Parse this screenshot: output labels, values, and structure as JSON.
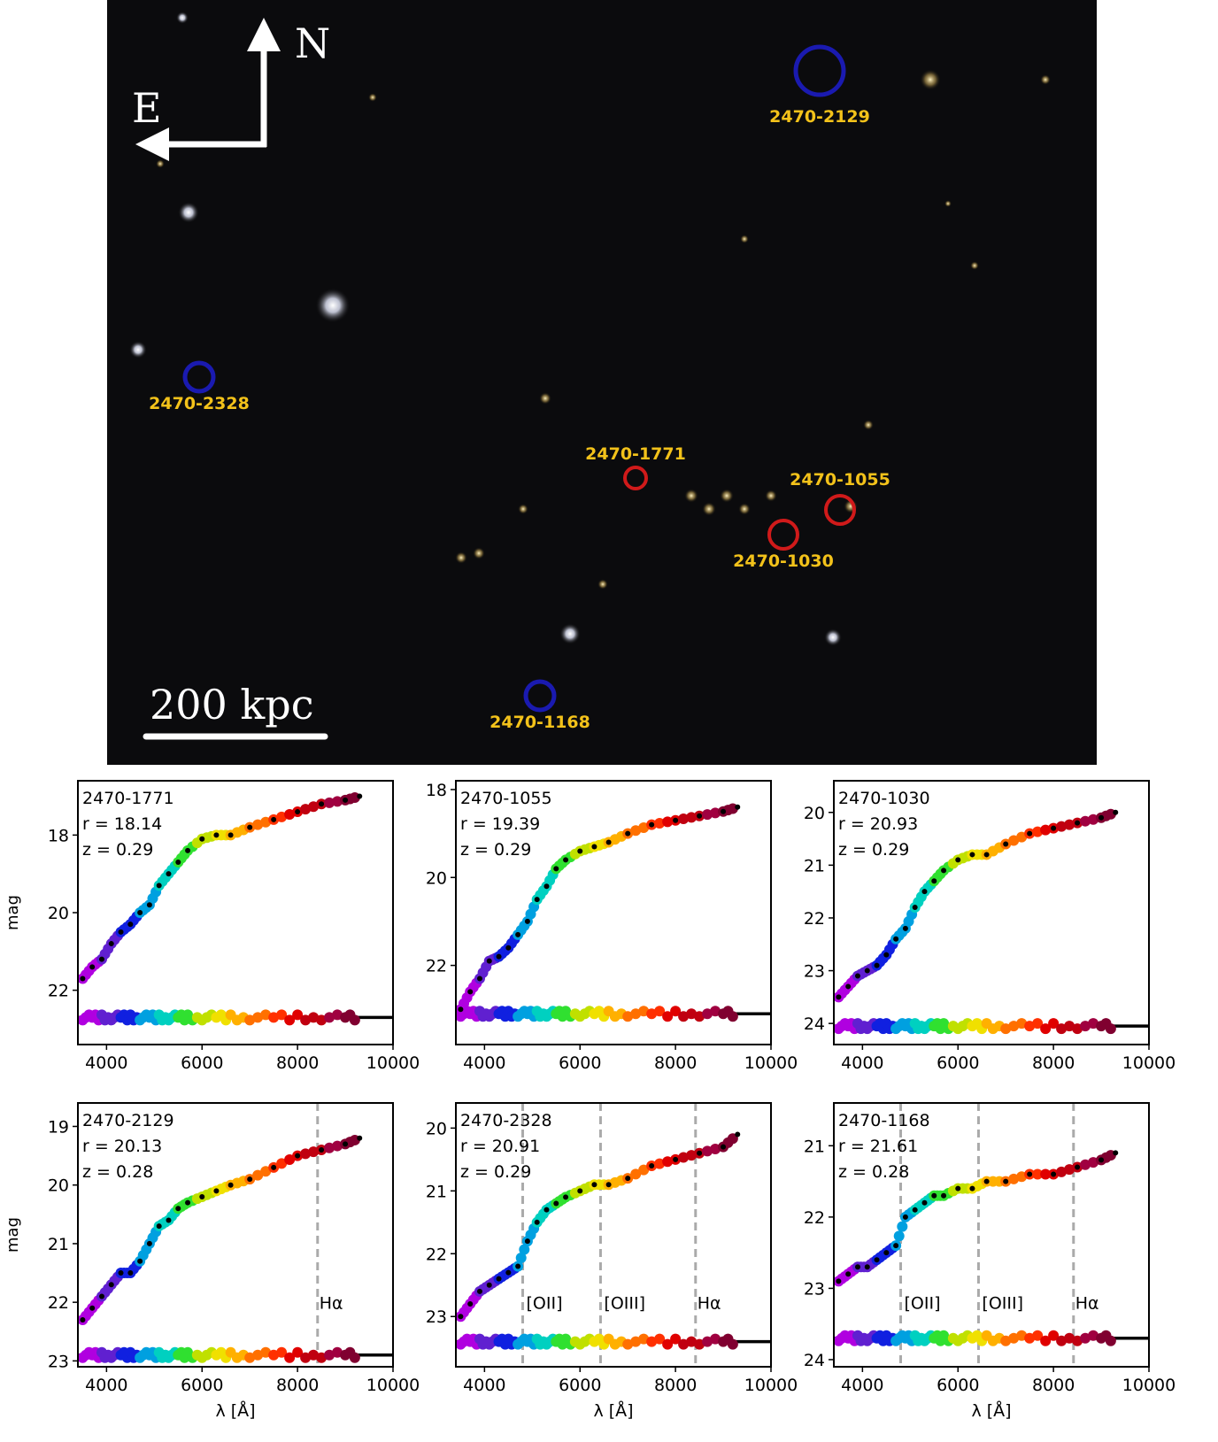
{
  "image": {
    "north_label": "N",
    "east_label": "E",
    "scalebar_label": "200  kpc",
    "targets": [
      {
        "label": "2470-2129",
        "color": "#1a1ab0"
      },
      {
        "label": "2470-2328",
        "color": "#1a1ab0"
      },
      {
        "label": "2470-1771",
        "color": "#d01a1a"
      },
      {
        "label": "2470-1055",
        "color": "#d01a1a"
      },
      {
        "label": "2470-1030",
        "color": "#d01a1a"
      },
      {
        "label": "2470-1168",
        "color": "#1a1ab0"
      }
    ],
    "label_color": "#f3c21a"
  },
  "chart_data": [
    {
      "type": "scatter",
      "title": "",
      "annotation": [
        "2470-1771",
        "r = 18.14",
        "z = 0.29"
      ],
      "xlabel": "",
      "ylabel": "mag",
      "xlim": [
        3400,
        10000
      ],
      "ylim": [
        23.4,
        16.6
      ],
      "xticks": [
        "4000",
        "6000",
        "8000",
        "10000"
      ],
      "yticks": [
        "18",
        "20",
        "22"
      ],
      "ytick_values": [
        18,
        20,
        22
      ],
      "residual_baseline": 22.7,
      "lines": [],
      "spectrum": [
        [
          3500,
          21.7
        ],
        [
          3700,
          21.4
        ],
        [
          3900,
          21.2
        ],
        [
          4100,
          20.8
        ],
        [
          4300,
          20.5
        ],
        [
          4500,
          20.3
        ],
        [
          4700,
          20.0
        ],
        [
          4900,
          19.8
        ],
        [
          5100,
          19.3
        ],
        [
          5300,
          19.0
        ],
        [
          5500,
          18.7
        ],
        [
          5700,
          18.4
        ],
        [
          6000,
          18.1
        ],
        [
          6300,
          18.0
        ],
        [
          6600,
          18.0
        ],
        [
          7000,
          17.8
        ],
        [
          7500,
          17.6
        ],
        [
          8000,
          17.4
        ],
        [
          8500,
          17.2
        ],
        [
          9000,
          17.1
        ],
        [
          9300,
          17.0
        ]
      ],
      "photometry_colors": [
        "#b000e0",
        "#6020d0",
        "#1020e0",
        "#00a0e0",
        "#00d0c0",
        "#30e030",
        "#c0e000",
        "#f0e000",
        "#ffb000",
        "#ff7000",
        "#ff3000",
        "#e00000",
        "#c00010",
        "#a00040",
        "#800030"
      ]
    },
    {
      "type": "scatter",
      "title": "",
      "annotation": [
        "2470-1055",
        "r = 19.39",
        "z = 0.29"
      ],
      "xlabel": "",
      "ylabel": "",
      "xlim": [
        3400,
        10000
      ],
      "ylim": [
        23.8,
        17.8
      ],
      "xticks": [
        "4000",
        "6000",
        "8000",
        "10000"
      ],
      "yticks": [
        "18",
        "20",
        "22"
      ],
      "ytick_values": [
        18,
        20,
        22
      ],
      "residual_baseline": 23.1,
      "lines": [],
      "spectrum": [
        [
          3500,
          23.0
        ],
        [
          3700,
          22.6
        ],
        [
          3900,
          22.3
        ],
        [
          4100,
          21.9
        ],
        [
          4300,
          21.8
        ],
        [
          4500,
          21.6
        ],
        [
          4700,
          21.3
        ],
        [
          4900,
          21.0
        ],
        [
          5100,
          20.5
        ],
        [
          5300,
          20.2
        ],
        [
          5500,
          19.8
        ],
        [
          5700,
          19.6
        ],
        [
          6000,
          19.4
        ],
        [
          6300,
          19.3
        ],
        [
          6600,
          19.2
        ],
        [
          7000,
          19.0
        ],
        [
          7500,
          18.8
        ],
        [
          8000,
          18.7
        ],
        [
          8500,
          18.6
        ],
        [
          9000,
          18.5
        ],
        [
          9300,
          18.4
        ]
      ],
      "photometry_colors": [
        "#b000e0",
        "#6020d0",
        "#1020e0",
        "#00a0e0",
        "#00d0c0",
        "#30e030",
        "#c0e000",
        "#f0e000",
        "#ffb000",
        "#ff7000",
        "#ff3000",
        "#e00000",
        "#c00010",
        "#a00040",
        "#800030"
      ]
    },
    {
      "type": "scatter",
      "title": "",
      "annotation": [
        "2470-1030",
        "r = 20.93",
        "z = 0.29"
      ],
      "xlabel": "",
      "ylabel": "",
      "xlim": [
        3400,
        10000
      ],
      "ylim": [
        24.4,
        19.4
      ],
      "xticks": [
        "4000",
        "6000",
        "8000",
        "10000"
      ],
      "yticks": [
        "20",
        "21",
        "22",
        "23",
        "24"
      ],
      "ytick_values": [
        20,
        21,
        22,
        23,
        24
      ],
      "residual_baseline": 24.05,
      "lines": [],
      "spectrum": [
        [
          3500,
          23.5
        ],
        [
          3700,
          23.3
        ],
        [
          3900,
          23.1
        ],
        [
          4100,
          23.0
        ],
        [
          4300,
          22.9
        ],
        [
          4500,
          22.7
        ],
        [
          4700,
          22.4
        ],
        [
          4900,
          22.2
        ],
        [
          5100,
          21.8
        ],
        [
          5300,
          21.5
        ],
        [
          5500,
          21.3
        ],
        [
          5700,
          21.1
        ],
        [
          6000,
          20.9
        ],
        [
          6300,
          20.8
        ],
        [
          6600,
          20.8
        ],
        [
          7000,
          20.6
        ],
        [
          7500,
          20.4
        ],
        [
          8000,
          20.3
        ],
        [
          8500,
          20.2
        ],
        [
          9000,
          20.1
        ],
        [
          9300,
          20.0
        ]
      ],
      "photometry_colors": [
        "#b000e0",
        "#6020d0",
        "#1020e0",
        "#00a0e0",
        "#00d0c0",
        "#30e030",
        "#c0e000",
        "#f0e000",
        "#ffb000",
        "#ff7000",
        "#ff3000",
        "#e00000",
        "#c00010",
        "#a00040",
        "#800030"
      ]
    },
    {
      "type": "scatter",
      "title": "",
      "annotation": [
        "2470-2129",
        "r = 20.13",
        "z = 0.28"
      ],
      "xlabel": "λ [Å]",
      "ylabel": "mag",
      "xlim": [
        3400,
        10000
      ],
      "ylim": [
        23.1,
        18.6
      ],
      "xticks": [
        "4000",
        "6000",
        "8000",
        "10000"
      ],
      "yticks": [
        "19",
        "20",
        "21",
        "22",
        "23"
      ],
      "ytick_values": [
        19,
        20,
        21,
        22,
        23
      ],
      "residual_baseline": 22.9,
      "lines": [
        {
          "label": "Hα",
          "x": 8420
        }
      ],
      "spectrum": [
        [
          3500,
          22.3
        ],
        [
          3700,
          22.1
        ],
        [
          3900,
          21.9
        ],
        [
          4100,
          21.7
        ],
        [
          4300,
          21.5
        ],
        [
          4500,
          21.5
        ],
        [
          4700,
          21.3
        ],
        [
          4900,
          21.0
        ],
        [
          5100,
          20.7
        ],
        [
          5300,
          20.6
        ],
        [
          5500,
          20.4
        ],
        [
          5700,
          20.3
        ],
        [
          6000,
          20.2
        ],
        [
          6300,
          20.1
        ],
        [
          6600,
          20.0
        ],
        [
          7000,
          19.9
        ],
        [
          7500,
          19.7
        ],
        [
          8000,
          19.5
        ],
        [
          8500,
          19.4
        ],
        [
          9000,
          19.3
        ],
        [
          9300,
          19.2
        ]
      ],
      "photometry_colors": [
        "#b000e0",
        "#6020d0",
        "#1020e0",
        "#00a0e0",
        "#00d0c0",
        "#30e030",
        "#c0e000",
        "#f0e000",
        "#ffb000",
        "#ff7000",
        "#ff3000",
        "#e00000",
        "#c00010",
        "#a00040",
        "#800030"
      ]
    },
    {
      "type": "scatter",
      "title": "",
      "annotation": [
        "2470-2328",
        "r = 20.91",
        "z = 0.29"
      ],
      "xlabel": "λ [Å]",
      "ylabel": "",
      "xlim": [
        3400,
        10000
      ],
      "ylim": [
        23.8,
        19.6
      ],
      "xticks": [
        "4000",
        "6000",
        "8000",
        "10000"
      ],
      "yticks": [
        "20",
        "21",
        "22",
        "23"
      ],
      "ytick_values": [
        20,
        21,
        22,
        23
      ],
      "residual_baseline": 23.4,
      "lines": [
        {
          "label": "[OII]",
          "x": 4800
        },
        {
          "label": "[OIII]",
          "x": 6430
        },
        {
          "label": "Hα",
          "x": 8420
        }
      ],
      "spectrum": [
        [
          3500,
          23.0
        ],
        [
          3700,
          22.8
        ],
        [
          3900,
          22.6
        ],
        [
          4100,
          22.5
        ],
        [
          4300,
          22.4
        ],
        [
          4500,
          22.3
        ],
        [
          4700,
          22.2
        ],
        [
          4900,
          21.8
        ],
        [
          5100,
          21.5
        ],
        [
          5300,
          21.3
        ],
        [
          5500,
          21.2
        ],
        [
          5700,
          21.1
        ],
        [
          6000,
          21.0
        ],
        [
          6300,
          20.9
        ],
        [
          6600,
          20.9
        ],
        [
          7000,
          20.8
        ],
        [
          7500,
          20.6
        ],
        [
          8000,
          20.5
        ],
        [
          8500,
          20.4
        ],
        [
          9000,
          20.3
        ],
        [
          9300,
          20.1
        ]
      ],
      "photometry_colors": [
        "#b000e0",
        "#6020d0",
        "#1020e0",
        "#00a0e0",
        "#00d0c0",
        "#30e030",
        "#c0e000",
        "#f0e000",
        "#ffb000",
        "#ff7000",
        "#ff3000",
        "#e00000",
        "#c00010",
        "#a00040",
        "#800030"
      ]
    },
    {
      "type": "scatter",
      "title": "",
      "annotation": [
        "2470-1168",
        "r = 21.61",
        "z = 0.28"
      ],
      "xlabel": "λ [Å]",
      "ylabel": "",
      "xlim": [
        3400,
        10000
      ],
      "ylim": [
        24.1,
        20.4
      ],
      "xticks": [
        "4000",
        "6000",
        "8000",
        "10000"
      ],
      "yticks": [
        "21",
        "22",
        "23",
        "24"
      ],
      "ytick_values": [
        21,
        22,
        23,
        24
      ],
      "residual_baseline": 23.7,
      "lines": [
        {
          "label": "[OII]",
          "x": 4800
        },
        {
          "label": "[OIII]",
          "x": 6430
        },
        {
          "label": "Hα",
          "x": 8420
        }
      ],
      "spectrum": [
        [
          3500,
          22.9
        ],
        [
          3700,
          22.8
        ],
        [
          3900,
          22.7
        ],
        [
          4100,
          22.7
        ],
        [
          4300,
          22.6
        ],
        [
          4500,
          22.5
        ],
        [
          4700,
          22.4
        ],
        [
          4900,
          22.0
        ],
        [
          5100,
          21.9
        ],
        [
          5300,
          21.8
        ],
        [
          5500,
          21.7
        ],
        [
          5700,
          21.7
        ],
        [
          6000,
          21.6
        ],
        [
          6300,
          21.6
        ],
        [
          6600,
          21.5
        ],
        [
          7000,
          21.5
        ],
        [
          7500,
          21.4
        ],
        [
          8000,
          21.4
        ],
        [
          8500,
          21.3
        ],
        [
          9000,
          21.2
        ],
        [
          9300,
          21.1
        ]
      ],
      "photometry_colors": [
        "#b000e0",
        "#6020d0",
        "#1020e0",
        "#00a0e0",
        "#00d0c0",
        "#30e030",
        "#c0e000",
        "#f0e000",
        "#ffb000",
        "#ff7000",
        "#ff3000",
        "#e00000",
        "#c00010",
        "#a00040",
        "#800030"
      ]
    }
  ]
}
